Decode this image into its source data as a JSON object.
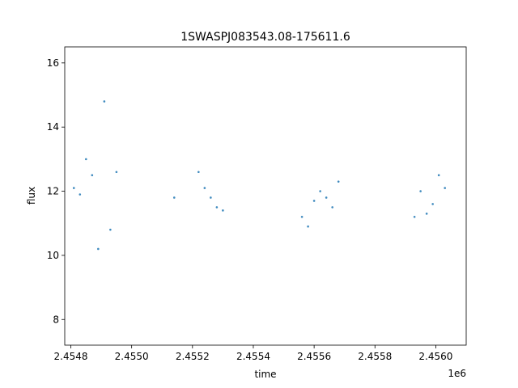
{
  "chart_data": {
    "type": "scatter",
    "title": "1SWASPJ083543.08-175611.6",
    "xlabel": "time",
    "ylabel": "flux",
    "x_offset_label": "1e6",
    "xlim": [
      2.45478,
      2.4561
    ],
    "ylim": [
      7.2,
      16.5
    ],
    "x_ticks": [
      2.4548,
      2.455,
      2.4552,
      2.4554,
      2.4556,
      2.4558,
      2.456
    ],
    "x_tick_labels": [
      "2.4548",
      "2.4550",
      "2.4552",
      "2.4554",
      "2.4556",
      "2.4558",
      "2.4560"
    ],
    "y_ticks": [
      8,
      10,
      12,
      14,
      16
    ],
    "y_tick_labels": [
      "8",
      "10",
      "12",
      "14",
      "16"
    ],
    "grid": false,
    "legend": "none",
    "point_color": "#1f77b4",
    "series": [
      {
        "x": [
          2.45481,
          2.45483,
          2.45485,
          2.45487,
          2.45489,
          2.45491,
          2.45493,
          2.45495,
          2.45514,
          2.45522,
          2.45524,
          2.45526,
          2.45528,
          2.4553,
          2.45556,
          2.45558,
          2.4556,
          2.45562,
          2.45564,
          2.45566,
          2.45568,
          2.45593,
          2.45595,
          2.45597,
          2.45599,
          2.45601,
          2.45603
        ],
        "y": [
          12.1,
          11.9,
          13.0,
          12.5,
          10.2,
          14.8,
          10.8,
          12.6,
          11.8,
          12.6,
          12.1,
          11.8,
          11.5,
          11.4,
          11.2,
          10.9,
          11.7,
          12.0,
          11.8,
          11.5,
          12.3,
          11.2,
          12.0,
          11.3,
          11.6,
          12.5,
          12.1
        ]
      }
    ]
  }
}
